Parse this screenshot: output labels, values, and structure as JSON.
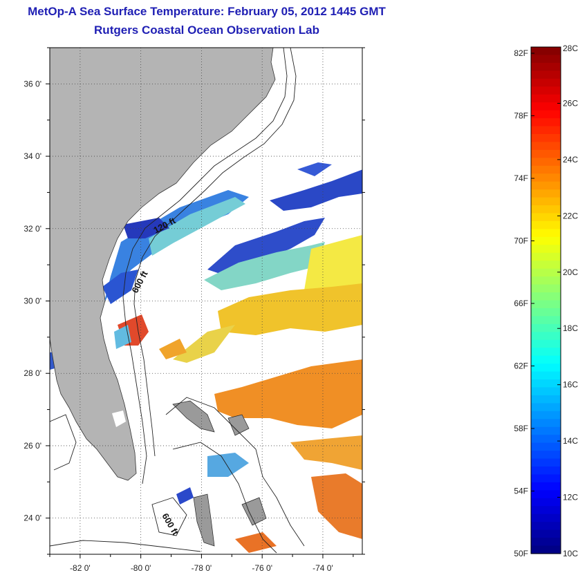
{
  "header": {
    "title": "MetOp-A Sea Surface Temperature:  February 05, 2012 1445 GMT",
    "subtitle": "Rutgers Coastal Ocean Observation Lab"
  },
  "map": {
    "lat_range": [
      23.0,
      37.0
    ],
    "lon_range": [
      -83.0,
      -72.7
    ],
    "lat_ticks": [
      {
        "value": 24,
        "label": "24 0'"
      },
      {
        "value": 26,
        "label": "26 0'"
      },
      {
        "value": 28,
        "label": "28 0'"
      },
      {
        "value": 30,
        "label": "30 0'"
      },
      {
        "value": 32,
        "label": "32 0'"
      },
      {
        "value": 34,
        "label": "34 0'"
      },
      {
        "value": 36,
        "label": "36 0'"
      }
    ],
    "lon_ticks": [
      {
        "value": -82,
        "label": "-82 0'"
      },
      {
        "value": -80,
        "label": "-80 0'"
      },
      {
        "value": -78,
        "label": "-78 0'"
      },
      {
        "value": -76,
        "label": "-76 0'"
      },
      {
        "value": -74,
        "label": "-74 0'"
      }
    ],
    "grid": "dotted",
    "land_color": "#b4b4b4",
    "contour_labels": [
      "120 ft",
      "600 ft",
      "600 ft"
    ]
  },
  "colorbar": {
    "min_c": 10,
    "max_c": 28,
    "celsius_labels": [
      "28C",
      "26C",
      "24C",
      "22C",
      "20C",
      "18C",
      "16C",
      "14C",
      "12C",
      "10C"
    ],
    "fahrenheit_labels": [
      "82F",
      "78F",
      "74F",
      "70F",
      "66F",
      "62F",
      "58F",
      "54F",
      "50F"
    ],
    "colormap": "jet"
  }
}
